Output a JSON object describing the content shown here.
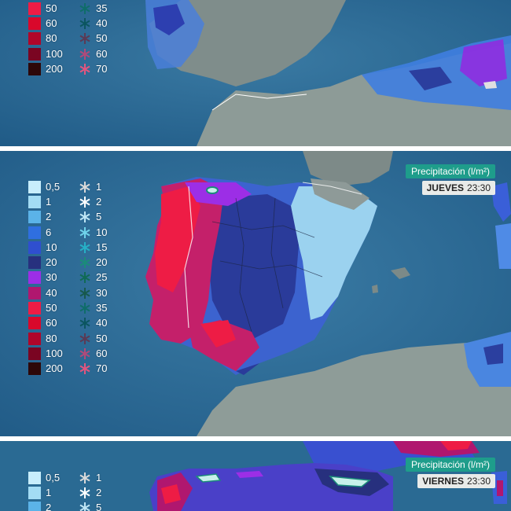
{
  "precip_scale": [
    "0,5",
    "1",
    "2",
    "6",
    "10",
    "20",
    "30",
    "40",
    "50",
    "60",
    "80",
    "100",
    "200"
  ],
  "precip_colors": [
    "#c8eefc",
    "#a3dcf4",
    "#5bb3e8",
    "#2f6fe0",
    "#2f4fcf",
    "#27307e",
    "#9c2ee6",
    "#b0176f",
    "#ee1c45",
    "#d9082b",
    "#b0062a",
    "#7a0522",
    "#2d0809"
  ],
  "snow_scale": [
    "1",
    "2",
    "5",
    "10",
    "15",
    "20",
    "25",
    "30",
    "35",
    "40",
    "50",
    "60",
    "70"
  ],
  "snow_colors": [
    "#d9d9d9",
    "#ffffff",
    "#bfe6f5",
    "#6fd3ea",
    "#26b0c6",
    "#1b8c7a",
    "#106b55",
    "#17594d",
    "#0f6d6a",
    "#0b5660",
    "#5b3a55",
    "#b04a7a",
    "#e2557f"
  ],
  "panel_top": {
    "precip_visible": [
      "50",
      "60",
      "80",
      "100",
      "200"
    ],
    "snow_visible": [
      "35",
      "40",
      "50",
      "60",
      "70"
    ]
  },
  "panel_mid": {
    "title": "Precipitación (l/m²)",
    "day": "JUEVES",
    "time": "23:30"
  },
  "panel_bot": {
    "title": "Precipitación (l/m²)",
    "day": "VIERNES",
    "time": "23:30",
    "precip_visible": [
      "0,5",
      "1",
      "2"
    ],
    "snow_visible": [
      "1",
      "2",
      "5"
    ]
  }
}
